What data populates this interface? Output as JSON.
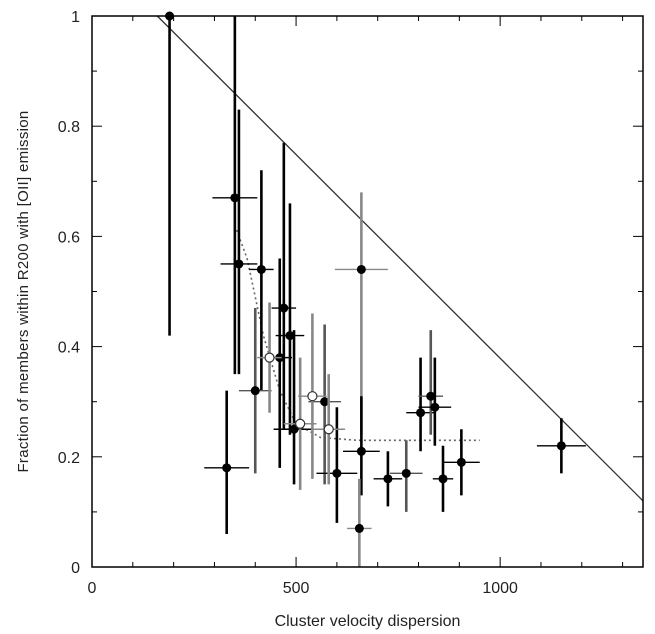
{
  "chart_data": {
    "type": "scatter",
    "xlabel": "Cluster velocity dispersion",
    "ylabel": "Fraction of members within R200 with [OII] emission",
    "xlim": [
      0,
      1350
    ],
    "ylim": [
      0,
      1
    ],
    "x_ticks": [
      0,
      500,
      1000
    ],
    "y_ticks": [
      0,
      0.2,
      0.4,
      0.6,
      0.8,
      1
    ],
    "grid": false,
    "series": [
      {
        "marker": "filled-circle",
        "color": "#000000",
        "points": [
          {
            "x": 190,
            "y": 1.0,
            "xerr": 0,
            "yerr_lo": 0.58,
            "yerr_hi": 0.0,
            "errcolor": "#000000"
          },
          {
            "x": 350,
            "y": 0.67,
            "xerr": 55,
            "yerr_lo": 0.32,
            "yerr_hi": 0.33,
            "errcolor": "#000000"
          },
          {
            "x": 360,
            "y": 0.55,
            "xerr": 45,
            "yerr_lo": 0.2,
            "yerr_hi": 0.28,
            "errcolor": "#000000"
          },
          {
            "x": 330,
            "y": 0.18,
            "xerr": 55,
            "yerr_lo": 0.12,
            "yerr_hi": 0.14,
            "errcolor": "#000000"
          },
          {
            "x": 415,
            "y": 0.54,
            "xerr": 30,
            "yerr_lo": 0.22,
            "yerr_hi": 0.18,
            "errcolor": "#000000"
          },
          {
            "x": 400,
            "y": 0.32,
            "xerr": 40,
            "yerr_lo": 0.15,
            "yerr_hi": 0.15,
            "errcolor": "#555555"
          },
          {
            "x": 470,
            "y": 0.47,
            "xerr": 30,
            "yerr_lo": 0.22,
            "yerr_hi": 0.3,
            "errcolor": "#000000"
          },
          {
            "x": 485,
            "y": 0.42,
            "xerr": 35,
            "yerr_lo": 0.18,
            "yerr_hi": 0.24,
            "errcolor": "#000000"
          },
          {
            "x": 460,
            "y": 0.38,
            "xerr": 30,
            "yerr_lo": 0.2,
            "yerr_hi": 0.18,
            "errcolor": "#000000"
          },
          {
            "x": 495,
            "y": 0.25,
            "xerr": 50,
            "yerr_lo": 0.1,
            "yerr_hi": 0.18,
            "errcolor": "#000000"
          },
          {
            "x": 570,
            "y": 0.3,
            "xerr": 40,
            "yerr_lo": 0.15,
            "yerr_hi": 0.14,
            "errcolor": "#555555"
          },
          {
            "x": 600,
            "y": 0.17,
            "xerr": 50,
            "yerr_lo": 0.09,
            "yerr_hi": 0.12,
            "errcolor": "#000000"
          },
          {
            "x": 660,
            "y": 0.54,
            "xerr": 65,
            "yerr_lo": 0.3,
            "yerr_hi": 0.14,
            "errcolor": "#888888"
          },
          {
            "x": 660,
            "y": 0.21,
            "xerr": 45,
            "yerr_lo": 0.08,
            "yerr_hi": 0.1,
            "errcolor": "#000000"
          },
          {
            "x": 655,
            "y": 0.07,
            "xerr": 30,
            "yerr_lo": 0.07,
            "yerr_hi": 0.09,
            "errcolor": "#888888"
          },
          {
            "x": 725,
            "y": 0.16,
            "xerr": 35,
            "yerr_lo": 0.05,
            "yerr_hi": 0.05,
            "errcolor": "#000000"
          },
          {
            "x": 770,
            "y": 0.17,
            "xerr": 40,
            "yerr_lo": 0.07,
            "yerr_hi": 0.06,
            "errcolor": "#555555"
          },
          {
            "x": 805,
            "y": 0.28,
            "xerr": 35,
            "yerr_lo": 0.07,
            "yerr_hi": 0.1,
            "errcolor": "#000000"
          },
          {
            "x": 830,
            "y": 0.31,
            "xerr": 30,
            "yerr_lo": 0.07,
            "yerr_hi": 0.12,
            "errcolor": "#555555"
          },
          {
            "x": 840,
            "y": 0.29,
            "xerr": 40,
            "yerr_lo": 0.07,
            "yerr_hi": 0.09,
            "errcolor": "#000000"
          },
          {
            "x": 860,
            "y": 0.16,
            "xerr": 25,
            "yerr_lo": 0.06,
            "yerr_hi": 0.06,
            "errcolor": "#000000"
          },
          {
            "x": 905,
            "y": 0.19,
            "xerr": 45,
            "yerr_lo": 0.06,
            "yerr_hi": 0.06,
            "errcolor": "#000000"
          },
          {
            "x": 1150,
            "y": 0.22,
            "xerr": 60,
            "yerr_lo": 0.05,
            "yerr_hi": 0.05,
            "errcolor": "#000000"
          }
        ]
      },
      {
        "marker": "open-circle",
        "color": "#000000",
        "points": [
          {
            "x": 435,
            "y": 0.38,
            "xerr": 30,
            "yerr_lo": 0.1,
            "yerr_hi": 0.1,
            "errcolor": "#888888"
          },
          {
            "x": 540,
            "y": 0.31,
            "xerr": 35,
            "yerr_lo": 0.15,
            "yerr_hi": 0.15,
            "errcolor": "#888888"
          },
          {
            "x": 510,
            "y": 0.26,
            "xerr": 40,
            "yerr_lo": 0.12,
            "yerr_hi": 0.12,
            "errcolor": "#888888"
          },
          {
            "x": 580,
            "y": 0.25,
            "xerr": 40,
            "yerr_lo": 0.1,
            "yerr_hi": 0.1,
            "errcolor": "#888888"
          }
        ]
      }
    ],
    "lines": [
      {
        "style": "solid",
        "color": "#333333",
        "points": [
          [
            160,
            1.0
          ],
          [
            1350,
            0.12
          ]
        ]
      },
      {
        "style": "dotted",
        "color": "#666666",
        "points": [
          [
            350,
            0.62
          ],
          [
            380,
            0.56
          ],
          [
            420,
            0.42
          ],
          [
            460,
            0.32
          ],
          [
            500,
            0.26
          ],
          [
            560,
            0.235
          ],
          [
            650,
            0.23
          ],
          [
            950,
            0.23
          ]
        ]
      }
    ]
  }
}
